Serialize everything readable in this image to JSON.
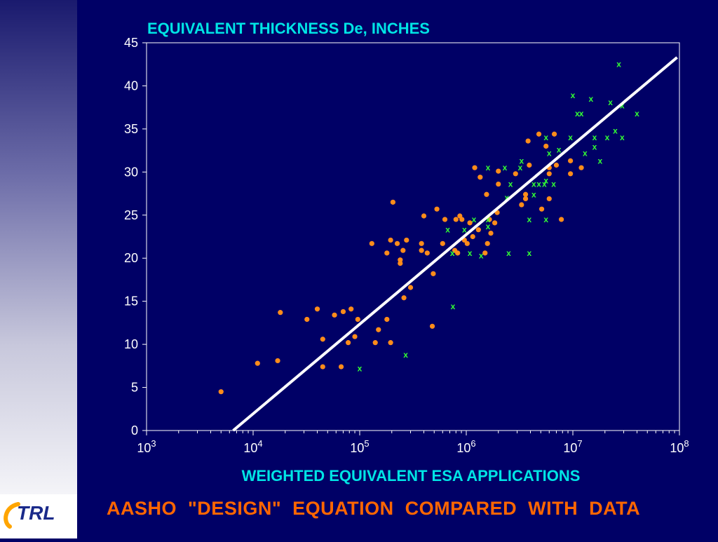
{
  "colors": {
    "background": "#000066",
    "title_color": "#00e5e5",
    "footer_color": "#ff6600",
    "axis_color": "#ffffff",
    "orange_points": "#ff8c1a",
    "green_points": "#33ff33",
    "trend_line": "#ffffff"
  },
  "logo": {
    "text": "TRL",
    "icon": "trl-logo-icon"
  },
  "footer": {
    "title": "AASHO  \"DESIGN\"  EQUATION  COMPARED  WITH  DATA"
  },
  "chart_data": {
    "type": "scatter",
    "title": "EQUIVALENT THICKNESS De, INCHES",
    "xlabel": "WEIGHTED EQUIVALENT ESA APPLICATIONS",
    "ylabel": "",
    "x_scale": "log",
    "xlim": [
      1000,
      100000000
    ],
    "ylim": [
      0,
      45
    ],
    "x_ticks": [
      {
        "base": "10",
        "exp": "3",
        "value": 1000
      },
      {
        "base": "10",
        "exp": "4",
        "value": 10000
      },
      {
        "base": "10",
        "exp": "5",
        "value": 100000
      },
      {
        "base": "10",
        "exp": "6",
        "value": 1000000
      },
      {
        "base": "10",
        "exp": "7",
        "value": 10000000
      },
      {
        "base": "10",
        "exp": "8",
        "value": 100000000
      }
    ],
    "y_ticks": [
      "0",
      "5",
      "10",
      "15",
      "20",
      "25",
      "30",
      "35",
      "40",
      "45"
    ],
    "grid": false,
    "legend": "none",
    "series": [
      {
        "marker": "dot",
        "points": [
          [
            5000,
            4.5
          ],
          [
            11000,
            7.8
          ],
          [
            17000,
            8.1
          ],
          [
            18000,
            13.7
          ],
          [
            32000,
            12.9
          ],
          [
            40000,
            14.1
          ],
          [
            45000,
            7.4
          ],
          [
            45000,
            10.6
          ],
          [
            58000,
            13.4
          ],
          [
            67000,
            7.4
          ],
          [
            70000,
            13.8
          ],
          [
            78000,
            10.2
          ],
          [
            83000,
            14.1
          ],
          [
            90000,
            10.9
          ],
          [
            96000,
            12.9
          ],
          [
            140000,
            10.2
          ],
          [
            150000,
            11.7
          ],
          [
            180000,
            12.9
          ],
          [
            195000,
            10.2
          ],
          [
            130000,
            21.7
          ],
          [
            180000,
            20.6
          ],
          [
            195000,
            22.1
          ],
          [
            205000,
            26.5
          ],
          [
            225000,
            21.7
          ],
          [
            240000,
            19.4
          ],
          [
            240000,
            19.8
          ],
          [
            255000,
            20.9
          ],
          [
            260000,
            15.4
          ],
          [
            275000,
            22.1
          ],
          [
            300000,
            16.6
          ],
          [
            380000,
            20.9
          ],
          [
            380000,
            21.7
          ],
          [
            400000,
            24.9
          ],
          [
            430000,
            20.6
          ],
          [
            480000,
            12.1
          ],
          [
            490000,
            18.2
          ],
          [
            530000,
            25.7
          ],
          [
            600000,
            21.7
          ],
          [
            630000,
            24.5
          ],
          [
            780000,
            20.9
          ],
          [
            800000,
            24.5
          ],
          [
            830000,
            20.6
          ],
          [
            870000,
            24.9
          ],
          [
            910000,
            24.5
          ],
          [
            960000,
            22.1
          ],
          [
            1020000,
            21.7
          ],
          [
            1080000,
            24.1
          ],
          [
            1150000,
            22.5
          ],
          [
            1200000,
            30.5
          ],
          [
            1300000,
            23.3
          ],
          [
            1350000,
            29.4
          ],
          [
            1500000,
            20.6
          ],
          [
            1550000,
            27.4
          ],
          [
            1580000,
            21.7
          ],
          [
            1650000,
            24.5
          ],
          [
            1700000,
            22.9
          ],
          [
            1850000,
            24.1
          ],
          [
            1950000,
            25.3
          ],
          [
            2000000,
            30.1
          ],
          [
            2000000,
            28.6
          ],
          [
            2900000,
            29.8
          ],
          [
            3300000,
            26.2
          ],
          [
            3600000,
            27.4
          ],
          [
            3600000,
            26.9
          ],
          [
            3800000,
            33.6
          ],
          [
            3900000,
            30.8
          ],
          [
            4800000,
            34.4
          ],
          [
            5100000,
            25.7
          ],
          [
            5600000,
            33.0
          ],
          [
            6000000,
            30.5
          ],
          [
            6000000,
            29.8
          ],
          [
            6000000,
            26.9
          ],
          [
            6700000,
            34.4
          ],
          [
            7000000,
            30.8
          ],
          [
            7800000,
            24.5
          ],
          [
            9500000,
            31.3
          ],
          [
            9500000,
            29.8
          ],
          [
            12000000,
            30.5
          ]
        ]
      },
      {
        "marker": "x",
        "points": [
          [
            100000,
            7.2
          ],
          [
            270000,
            8.8
          ],
          [
            750000,
            14.4
          ],
          [
            670000,
            23.3
          ],
          [
            740000,
            20.6
          ],
          [
            960000,
            23.3
          ],
          [
            1080000,
            20.6
          ],
          [
            1180000,
            24.5
          ],
          [
            1380000,
            20.3
          ],
          [
            1600000,
            24.5
          ],
          [
            1600000,
            23.7
          ],
          [
            1600000,
            30.5
          ],
          [
            2300000,
            30.5
          ],
          [
            2400000,
            27.0
          ],
          [
            2500000,
            20.6
          ],
          [
            2600000,
            28.6
          ],
          [
            3200000,
            30.5
          ],
          [
            3300000,
            31.3
          ],
          [
            3900000,
            20.6
          ],
          [
            3900000,
            24.5
          ],
          [
            4300000,
            28.6
          ],
          [
            4300000,
            27.4
          ],
          [
            4800000,
            28.6
          ],
          [
            5400000,
            28.6
          ],
          [
            5600000,
            24.5
          ],
          [
            5600000,
            34.0
          ],
          [
            5600000,
            29.0
          ],
          [
            6000000,
            32.2
          ],
          [
            6600000,
            28.6
          ],
          [
            7400000,
            32.6
          ],
          [
            9500000,
            34.0
          ],
          [
            10000000,
            38.9
          ],
          [
            11000000,
            36.8
          ],
          [
            12000000,
            36.8
          ],
          [
            13000000,
            32.2
          ],
          [
            14800000,
            38.5
          ],
          [
            16000000,
            34.0
          ],
          [
            16000000,
            32.9
          ],
          [
            18000000,
            31.3
          ],
          [
            21000000,
            34.0
          ],
          [
            22500000,
            38.1
          ],
          [
            25000000,
            34.8
          ],
          [
            27000000,
            42.5
          ],
          [
            29000000,
            37.7
          ],
          [
            29000000,
            34.0
          ],
          [
            40000000,
            36.8
          ]
        ]
      }
    ],
    "trend_line": {
      "points": [
        [
          6500,
          0
        ],
        [
          95000000,
          43.3
        ]
      ]
    }
  }
}
